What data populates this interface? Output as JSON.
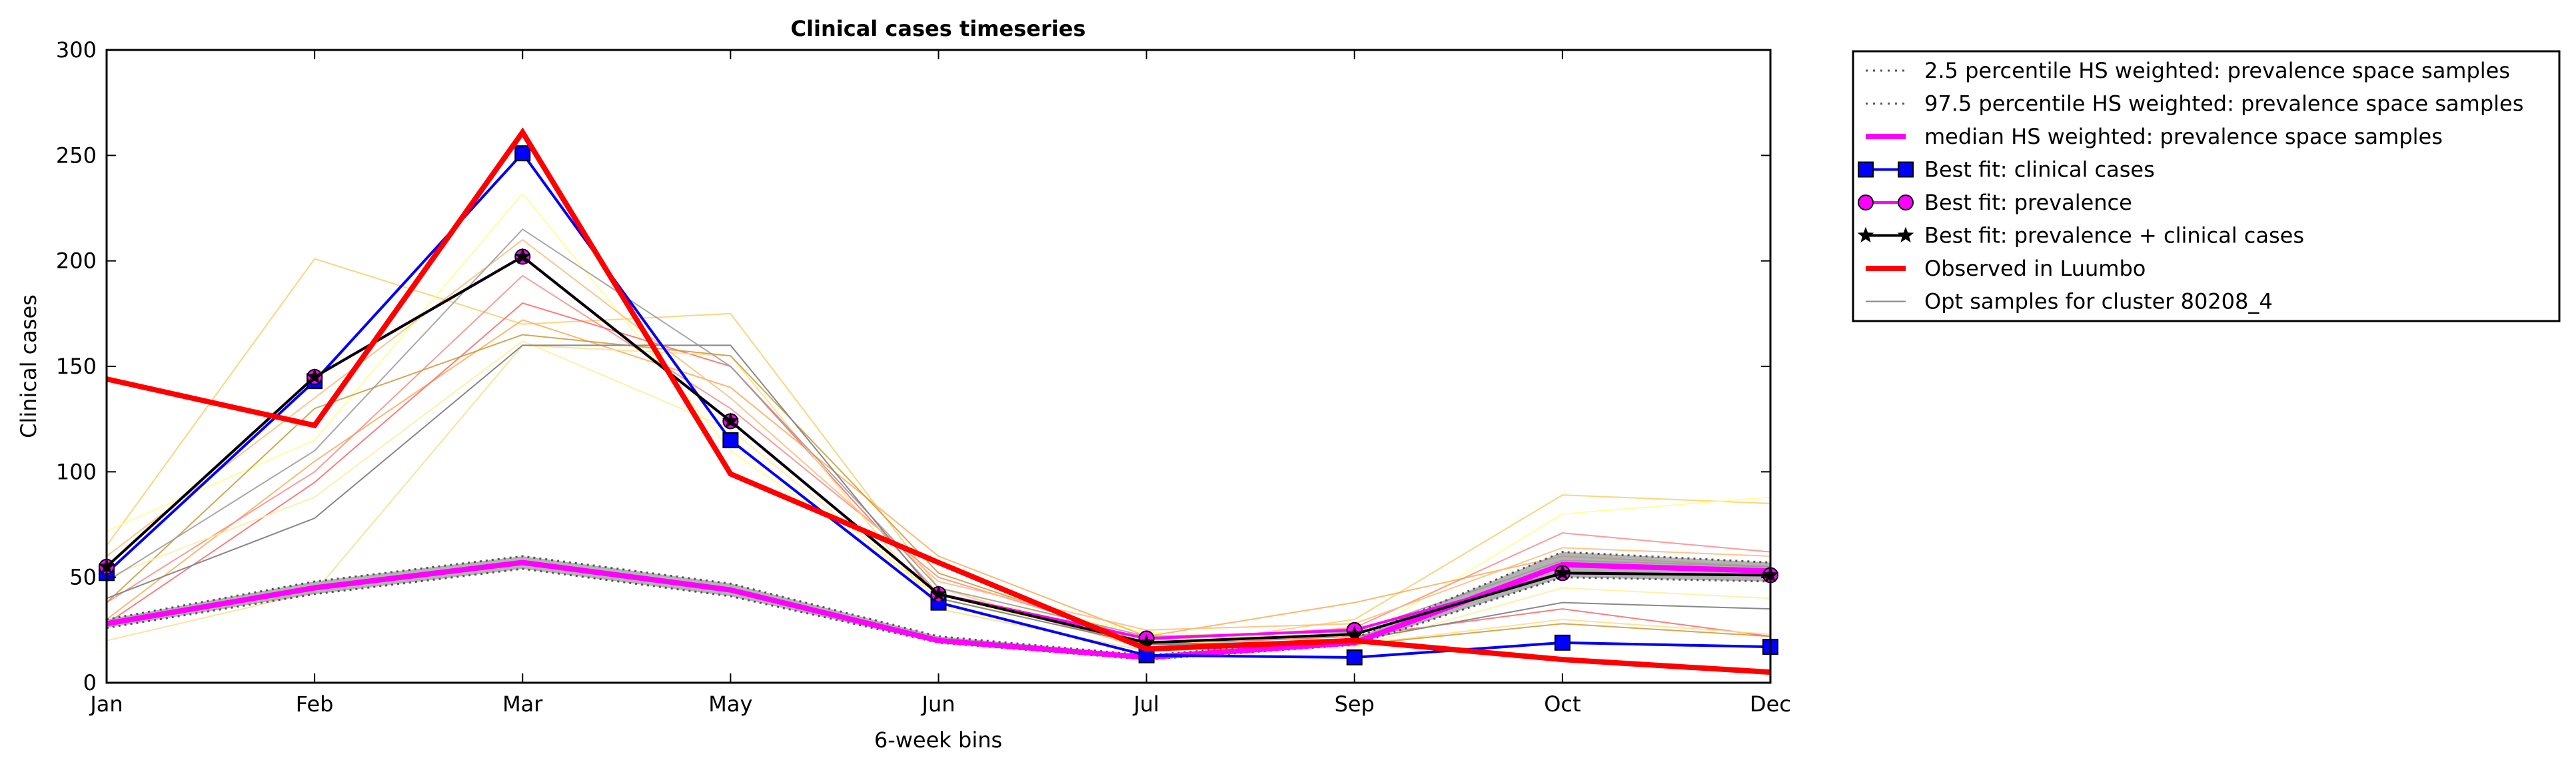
{
  "chart_data": {
    "type": "line",
    "title": "Clinical cases timeseries",
    "xlabel": "6-week bins",
    "ylabel": "Clinical cases",
    "categories": [
      "Jan",
      "Feb",
      "Mar",
      "May",
      "Jun",
      "Jul",
      "Sep",
      "Oct",
      "Dec"
    ],
    "ylim": [
      0,
      300
    ],
    "yticks": [
      "0",
      "50",
      "100",
      "150",
      "200",
      "250",
      "300"
    ],
    "legend_position": "outside-right-top",
    "grid": false,
    "series": [
      {
        "name": "2.5 percentile HS weighted: prevalence space samples",
        "style": "dotted",
        "color": "#555555",
        "values": [
          26,
          42,
          54,
          41,
          19,
          11,
          18,
          50,
          48
        ]
      },
      {
        "name": "97.5 percentile HS weighted: prevalence space samples",
        "style": "dotted",
        "color": "#555555",
        "values": [
          30,
          48,
          60,
          47,
          22,
          13,
          21,
          62,
          57
        ]
      },
      {
        "name": "median HS weighted: prevalence space samples",
        "style": "solid-thick",
        "color": "#ff00ff",
        "values": [
          28,
          45,
          57,
          44,
          20,
          12,
          19,
          56,
          53
        ]
      },
      {
        "name": "Best fit: clinical cases",
        "style": "line-square",
        "color": "#0000ff",
        "values": [
          52,
          143,
          251,
          115,
          38,
          13,
          12,
          19,
          17
        ]
      },
      {
        "name": "Best fit: prevalence",
        "style": "line-circle",
        "color": "#ff00ff",
        "values": [
          55,
          145,
          202,
          124,
          42,
          21,
          25,
          52,
          51
        ]
      },
      {
        "name": "Best fit: prevalence + clinical cases",
        "style": "line-star",
        "color": "#000000",
        "values": [
          55,
          145,
          202,
          124,
          42,
          19,
          23,
          52,
          51
        ]
      },
      {
        "name": "Observed in Luumbo",
        "style": "solid-thick",
        "color": "#ff0000",
        "values": [
          144,
          122,
          261,
          99,
          57,
          16,
          20,
          11,
          5
        ]
      },
      {
        "name": "Opt samples for cluster 80208_4",
        "style": "thin",
        "color": "#888888",
        "values": [
          40,
          78,
          160,
          160,
          40,
          18,
          20,
          38,
          35
        ]
      }
    ],
    "background_samples": [
      {
        "color": "#ffcc66",
        "values": [
          65,
          201,
          170,
          175,
          45,
          16,
          30,
          89,
          85
        ]
      },
      {
        "color": "#ffff88",
        "values": [
          72,
          115,
          232,
          110,
          42,
          24,
          20,
          80,
          88
        ]
      },
      {
        "color": "#ffaa55",
        "values": [
          30,
          105,
          172,
          140,
          60,
          22,
          38,
          60,
          55
        ]
      },
      {
        "color": "#ff8888",
        "values": [
          38,
          100,
          193,
          130,
          50,
          20,
          26,
          71,
          62
        ]
      },
      {
        "color": "#ff6666",
        "values": [
          28,
          95,
          180,
          150,
          42,
          18,
          22,
          35,
          22
        ]
      },
      {
        "color": "#ffdd88",
        "values": [
          20,
          43,
          160,
          155,
          35,
          15,
          18,
          30,
          23
        ]
      },
      {
        "color": "#cc9933",
        "values": [
          38,
          130,
          165,
          155,
          52,
          19,
          18,
          28,
          22
        ]
      },
      {
        "color": "#ffee99",
        "values": [
          50,
          88,
          162,
          120,
          40,
          20,
          17,
          45,
          40
        ]
      },
      {
        "color": "#ffbb77",
        "values": [
          60,
          135,
          210,
          135,
          48,
          25,
          28,
          64,
          60
        ]
      },
      {
        "color": "#999999",
        "values": [
          48,
          110,
          215,
          150,
          45,
          22,
          24,
          58,
          55
        ]
      }
    ]
  }
}
